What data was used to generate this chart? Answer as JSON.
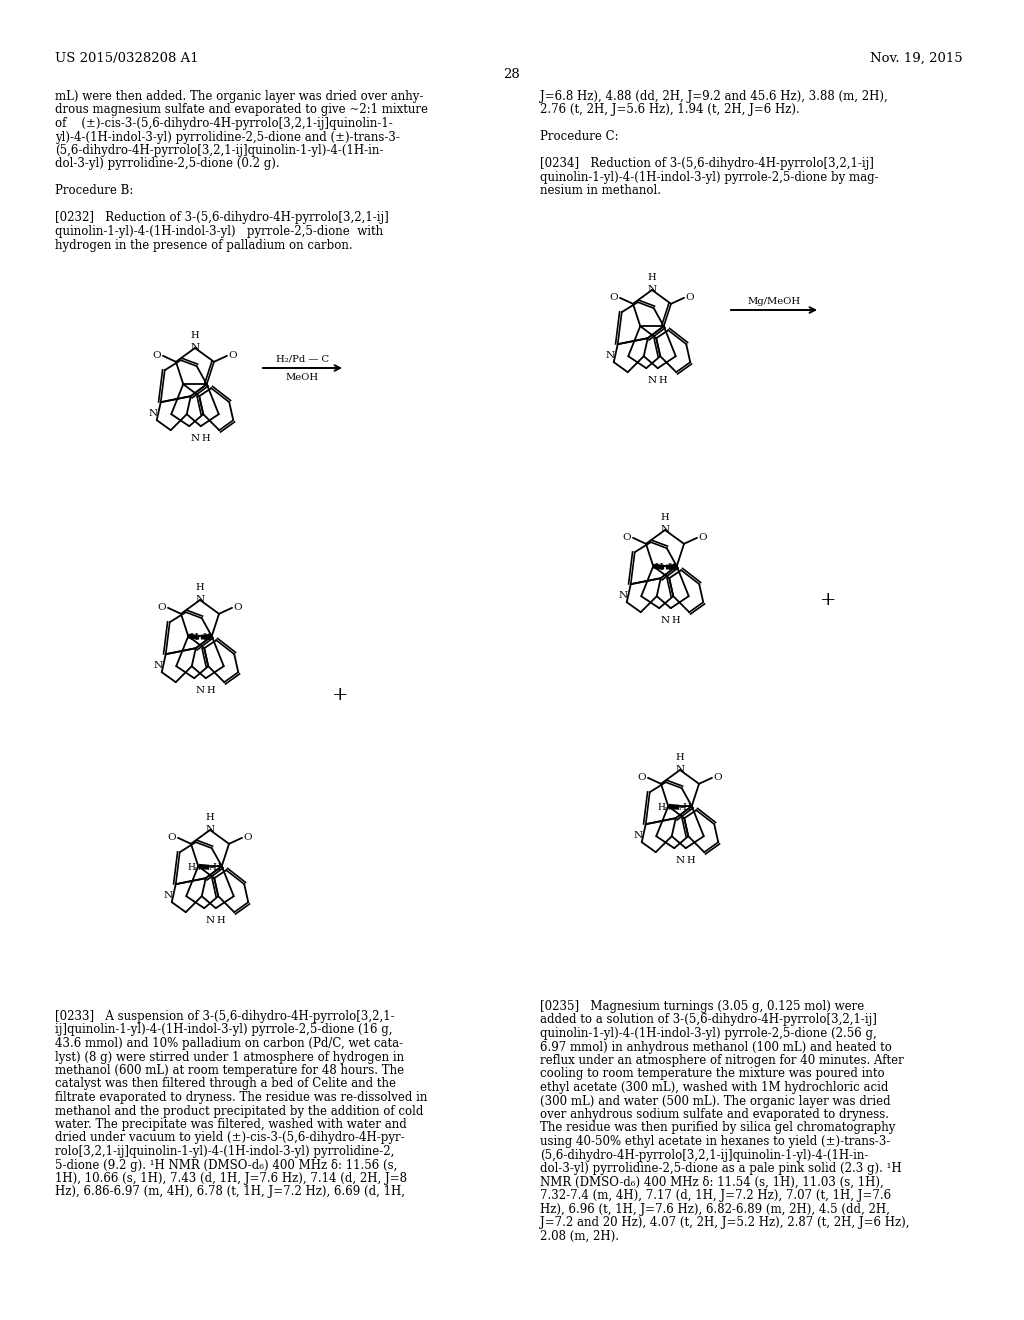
{
  "patent_number": "US 2015/0328208 A1",
  "patent_date": "Nov. 19, 2015",
  "page_number": "28",
  "bg_color": "#ffffff",
  "left_col_top": [
    "mL) were then added. The organic layer was dried over anhy-",
    "drous magnesium sulfate and evaporated to give ~2:1 mixture",
    "of    (±)-cis-3-(5,6-dihydro-4H-pyrrolo[3,2,1-ij]quinolin-1-",
    "yl)-4-(1H-indol-3-yl) pyrrolidine-2,5-dione and (±)-trans-3-",
    "(5,6-dihydro-4H-pyrrolo[3,2,1-ij]quinolin-1-yl)-4-(1H-in-",
    "dol-3-yl) pyrrolidine-2,5-dione (0.2 g)."
  ],
  "right_col_top": [
    "J=6.8 Hz), 4.88 (dd, 2H, J=9.2 and 45.6 Hz), 3.88 (m, 2H),",
    "2.76 (t, 2H, J=5.6 Hz), 1.94 (t, 2H, J=6 Hz)."
  ],
  "proc_b_label": "Procedure B:",
  "proc_c_label": "Procedure C:",
  "p0232": [
    "[0232]   Reduction of 3-(5,6-dihydro-4H-pyrrolo[3,2,1-ij]",
    "quinolin-1-yl)-4-(1H-indol-3-yl)   pyrrole-2,5-dione  with",
    "hydrogen in the presence of palladium on carbon."
  ],
  "p0234": [
    "[0234]   Reduction of 3-(5,6-dihydro-4H-pyrrolo[3,2,1-ij]",
    "quinolin-1-yl)-4-(1H-indol-3-yl) pyrrole-2,5-dione by mag-",
    "nesium in methanol."
  ],
  "p0233": [
    "[0233]   A suspension of 3-(5,6-dihydro-4H-pyrrolo[3,2,1-",
    "ij]quinolin-1-yl)-4-(1H-indol-3-yl) pyrrole-2,5-dione (16 g,",
    "43.6 mmol) and 10% palladium on carbon (Pd/C, wet cata-",
    "lyst) (8 g) were stirred under 1 atmosphere of hydrogen in",
    "methanol (600 mL) at room temperature for 48 hours. The",
    "catalyst was then filtered through a bed of Celite and the",
    "filtrate evaporated to dryness. The residue was re-dissolved in",
    "methanol and the product precipitated by the addition of cold",
    "water. The precipitate was filtered, washed with water and",
    "dried under vacuum to yield (±)-cis-3-(5,6-dihydro-4H-pyr-",
    "rolo[3,2,1-ij]quinolin-1-yl)-4-(1H-indol-3-yl) pyrrolidine-2,",
    "5-dione (9.2 g). ¹H NMR (DMSO-d₆) 400 MHz δ: 11.56 (s,",
    "1H), 10.66 (s, 1H), 7.43 (d, 1H, J=7.6 Hz), 7.14 (d, 2H, J=8",
    "Hz), 6.86-6.97 (m, 4H), 6.78 (t, 1H, J=7.2 Hz), 6.69 (d, 1H,"
  ],
  "p0235": [
    "[0235]   Magnesium turnings (3.05 g, 0.125 mol) were",
    "added to a solution of 3-(5,6-dihydro-4H-pyrrolo[3,2,1-ij]",
    "quinolin-1-yl)-4-(1H-indol-3-yl) pyrrole-2,5-dione (2.56 g,",
    "6.97 mmol) in anhydrous methanol (100 mL) and heated to",
    "reflux under an atmosphere of nitrogen for 40 minutes. After",
    "cooling to room temperature the mixture was poured into",
    "ethyl acetate (300 mL), washed with 1M hydrochloric acid",
    "(300 mL) and water (500 mL). The organic layer was dried",
    "over anhydrous sodium sulfate and evaporated to dryness.",
    "The residue was then purified by silica gel chromatography",
    "using 40-50% ethyl acetate in hexanes to yield (±)-trans-3-",
    "(5,6-dihydro-4H-pyrrolo[3,2,1-ij]quinolin-1-yl)-4-(1H-in-",
    "dol-3-yl) pyrrolidine-2,5-dione as a pale pink solid (2.3 g). ¹H",
    "NMR (DMSO-d₆) 400 MHz δ: 11.54 (s, 1H), 11.03 (s, 1H),",
    "7.32-7.4 (m, 4H), 7.17 (d, 1H, J=7.2 Hz), 7.07 (t, 1H, J=7.6",
    "Hz), 6.96 (t, 1H, J=7.6 Hz), 6.82-6.89 (m, 2H), 4.5 (dd, 2H,",
    "J=7.2 and 20 Hz), 4.07 (t, 2H, J=5.2 Hz), 2.87 (t, 2H, J=6 Hz),",
    "2.08 (m, 2H)."
  ]
}
